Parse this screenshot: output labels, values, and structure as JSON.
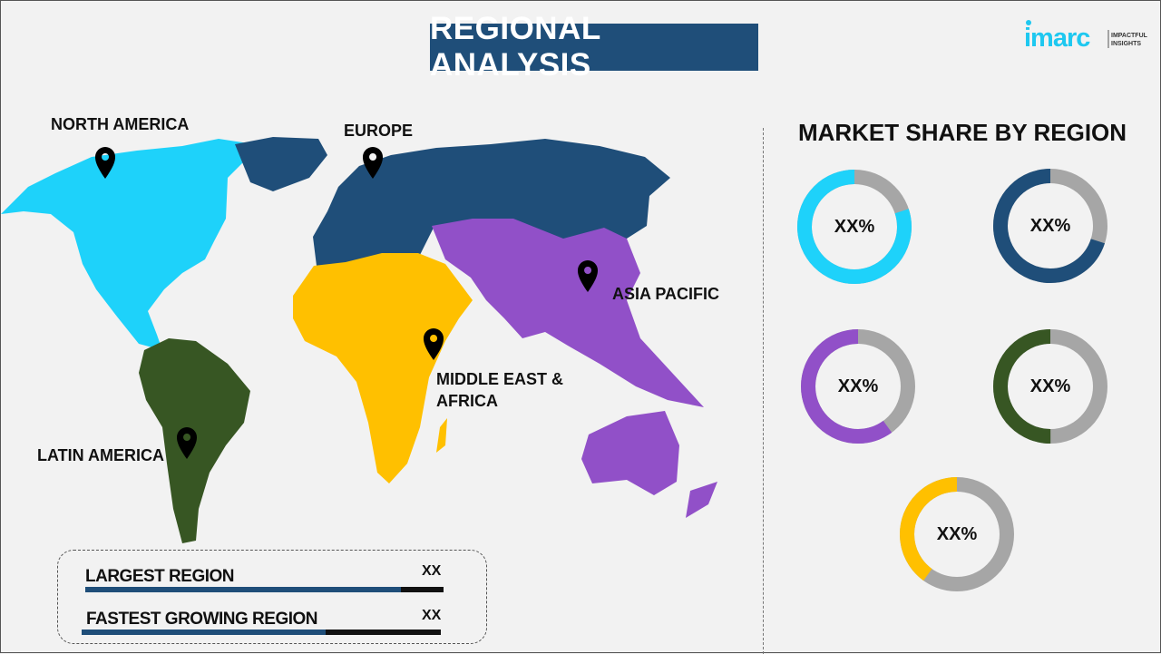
{
  "header": {
    "title": "REGIONAL ANALYSIS"
  },
  "logo": {
    "brand": "imarc",
    "tagline_1": "IMPACTFUL",
    "tagline_2": "INSIGHTS"
  },
  "map": {
    "regions": [
      {
        "name": "NORTH AMERICA",
        "color": "#1ed2fa"
      },
      {
        "name": "EUROPE",
        "color": "#1f4e79"
      },
      {
        "name": "ASIA PACIFIC",
        "color": "#9150c8"
      },
      {
        "name": "MIDDLE EAST & AFRICA",
        "line1": "MIDDLE EAST &",
        "line2": "AFRICA",
        "color": "#ffc000"
      },
      {
        "name": "LATIN AMERICA",
        "color": "#375623"
      }
    ],
    "pin_icon": "map-pin-icon"
  },
  "market_share": {
    "title": "MARKET SHARE BY REGION",
    "remainder_color": "#a6a6a6",
    "donuts": [
      {
        "region": "NORTH AMERICA",
        "label": "XX%",
        "fraction": 0.8,
        "color": "#1ed2fa"
      },
      {
        "region": "EUROPE",
        "label": "XX%",
        "fraction": 0.7,
        "color": "#1f4e79"
      },
      {
        "region": "ASIA PACIFIC",
        "label": "XX%",
        "fraction": 0.6,
        "color": "#9150c8"
      },
      {
        "region": "LATIN AMERICA",
        "label": "XX%",
        "fraction": 0.5,
        "color": "#375623"
      },
      {
        "region": "MIDDLE EAST & AFRICA",
        "label": "XX%",
        "fraction": 0.4,
        "color": "#ffc000"
      }
    ]
  },
  "summary": {
    "rows": [
      {
        "label": "LARGEST REGION",
        "value": "XX",
        "fill_percent": 88
      },
      {
        "label": "FASTEST GROWING REGION",
        "value": "XX",
        "fill_percent": 68
      }
    ]
  }
}
